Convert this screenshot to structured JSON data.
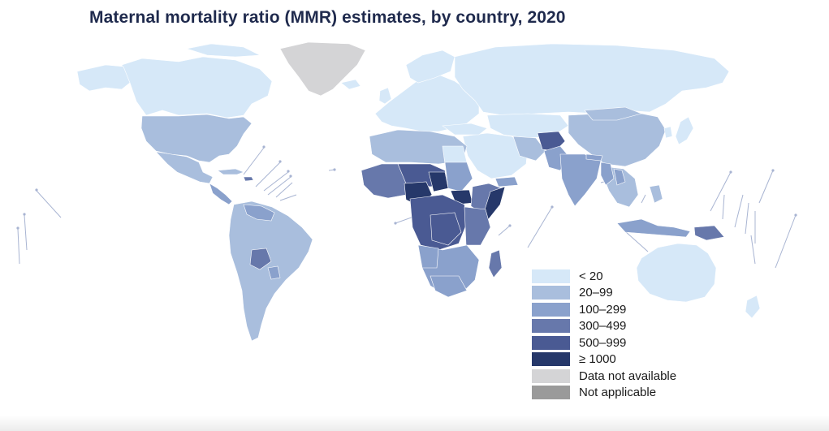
{
  "title": "Maternal mortality ratio (MMR) estimates, by country, 2020",
  "map": {
    "categories": {
      "c1": "< 20",
      "c2": "20–99",
      "c3": "100–299",
      "c4": "300–499",
      "c5": "500–999",
      "c6": "≥ 1000",
      "na": "Data not available",
      "notapp": "Not applicable"
    },
    "colors": {
      "c1": "#d6e8f8",
      "c2": "#a9bedd",
      "c3": "#8aa1cc",
      "c4": "#6778ab",
      "c5": "#4a5a93",
      "c6": "#26386a",
      "na": "#d4d4d6",
      "notapp": "#9a9a9a",
      "border": "#ffffff",
      "leader": "#a8b4d2"
    },
    "legend": [
      {
        "key": "c1",
        "label": "< 20",
        "color": "#d6e8f8"
      },
      {
        "key": "c2",
        "label": "20–99",
        "color": "#a9bedd"
      },
      {
        "key": "c3",
        "label": "100–299",
        "color": "#8aa1cc"
      },
      {
        "key": "c4",
        "label": "300–499",
        "color": "#6778ab"
      },
      {
        "key": "c5",
        "label": "500–999",
        "color": "#4a5a93"
      },
      {
        "key": "c6",
        "label": "≥ 1000",
        "color": "#26386a"
      },
      {
        "key": "na",
        "label": "Data not available",
        "color": "#d4d4d6"
      },
      {
        "key": "notapp",
        "label": "Not applicable",
        "color": "#9a9a9a"
      }
    ]
  }
}
